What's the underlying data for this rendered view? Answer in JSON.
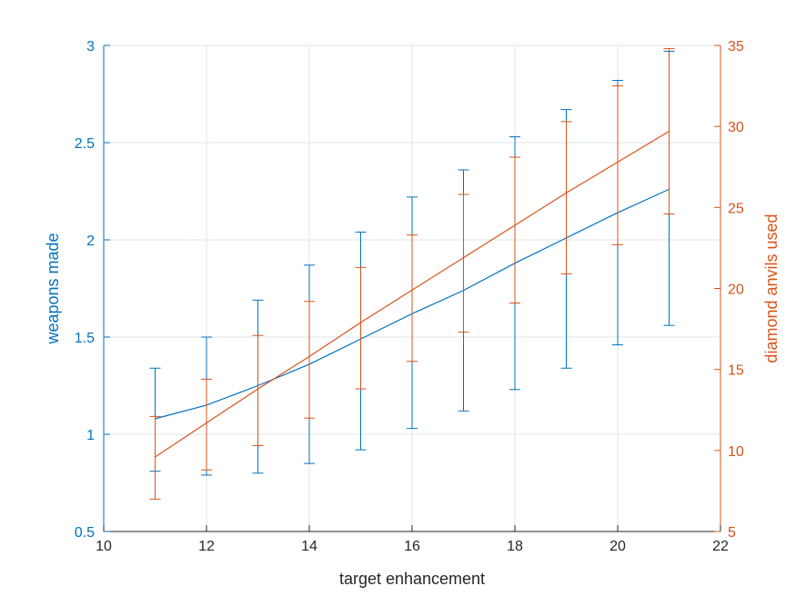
{
  "colors": {
    "left_series": "#0072BD",
    "right_series": "#D95319",
    "grid": "#DCE6EE",
    "axis": "#262626"
  },
  "chart_data": {
    "type": "line",
    "title": "",
    "xlabel": "target enhancement",
    "ylabel_left": "weapons made",
    "ylabel_right": "diamond anvils used",
    "xlim": [
      10,
      22
    ],
    "ylim_left": [
      0.5,
      3
    ],
    "ylim_right": [
      5,
      35
    ],
    "x_ticks": [
      10,
      12,
      14,
      16,
      18,
      20,
      22
    ],
    "y_ticks_left": [
      0.5,
      1,
      1.5,
      2,
      2.5,
      3
    ],
    "y_ticks_left_labels": [
      "0.5",
      "1",
      "1.5",
      "2",
      "2.5",
      "3"
    ],
    "y_ticks_right": [
      5,
      10,
      15,
      20,
      25,
      30,
      35
    ],
    "grid": true,
    "legend": "none",
    "x": [
      11,
      12,
      13,
      14,
      15,
      16,
      17,
      18,
      19,
      20,
      21
    ],
    "series": [
      {
        "axis": "left",
        "values": [
          1.08,
          1.15,
          1.25,
          1.36,
          1.49,
          1.62,
          1.74,
          1.88,
          2.01,
          2.14,
          2.26
        ],
        "error_lower": [
          0.81,
          0.79,
          0.8,
          0.85,
          0.92,
          1.03,
          1.12,
          1.23,
          1.34,
          1.46,
          1.56
        ],
        "error_upper": [
          1.34,
          1.5,
          1.69,
          1.87,
          2.04,
          2.22,
          2.36,
          2.53,
          2.67,
          2.82,
          2.97
        ]
      },
      {
        "axis": "right",
        "values": [
          9.6,
          11.7,
          13.8,
          15.8,
          17.9,
          19.9,
          21.9,
          23.9,
          25.9,
          27.8,
          29.7
        ],
        "error_lower": [
          7.0,
          8.8,
          10.3,
          12.0,
          13.8,
          15.5,
          17.3,
          19.1,
          20.9,
          22.7,
          24.6
        ],
        "error_upper": [
          12.1,
          14.4,
          17.1,
          19.2,
          21.3,
          23.3,
          25.8,
          28.1,
          30.3,
          32.5,
          34.8
        ]
      }
    ]
  }
}
